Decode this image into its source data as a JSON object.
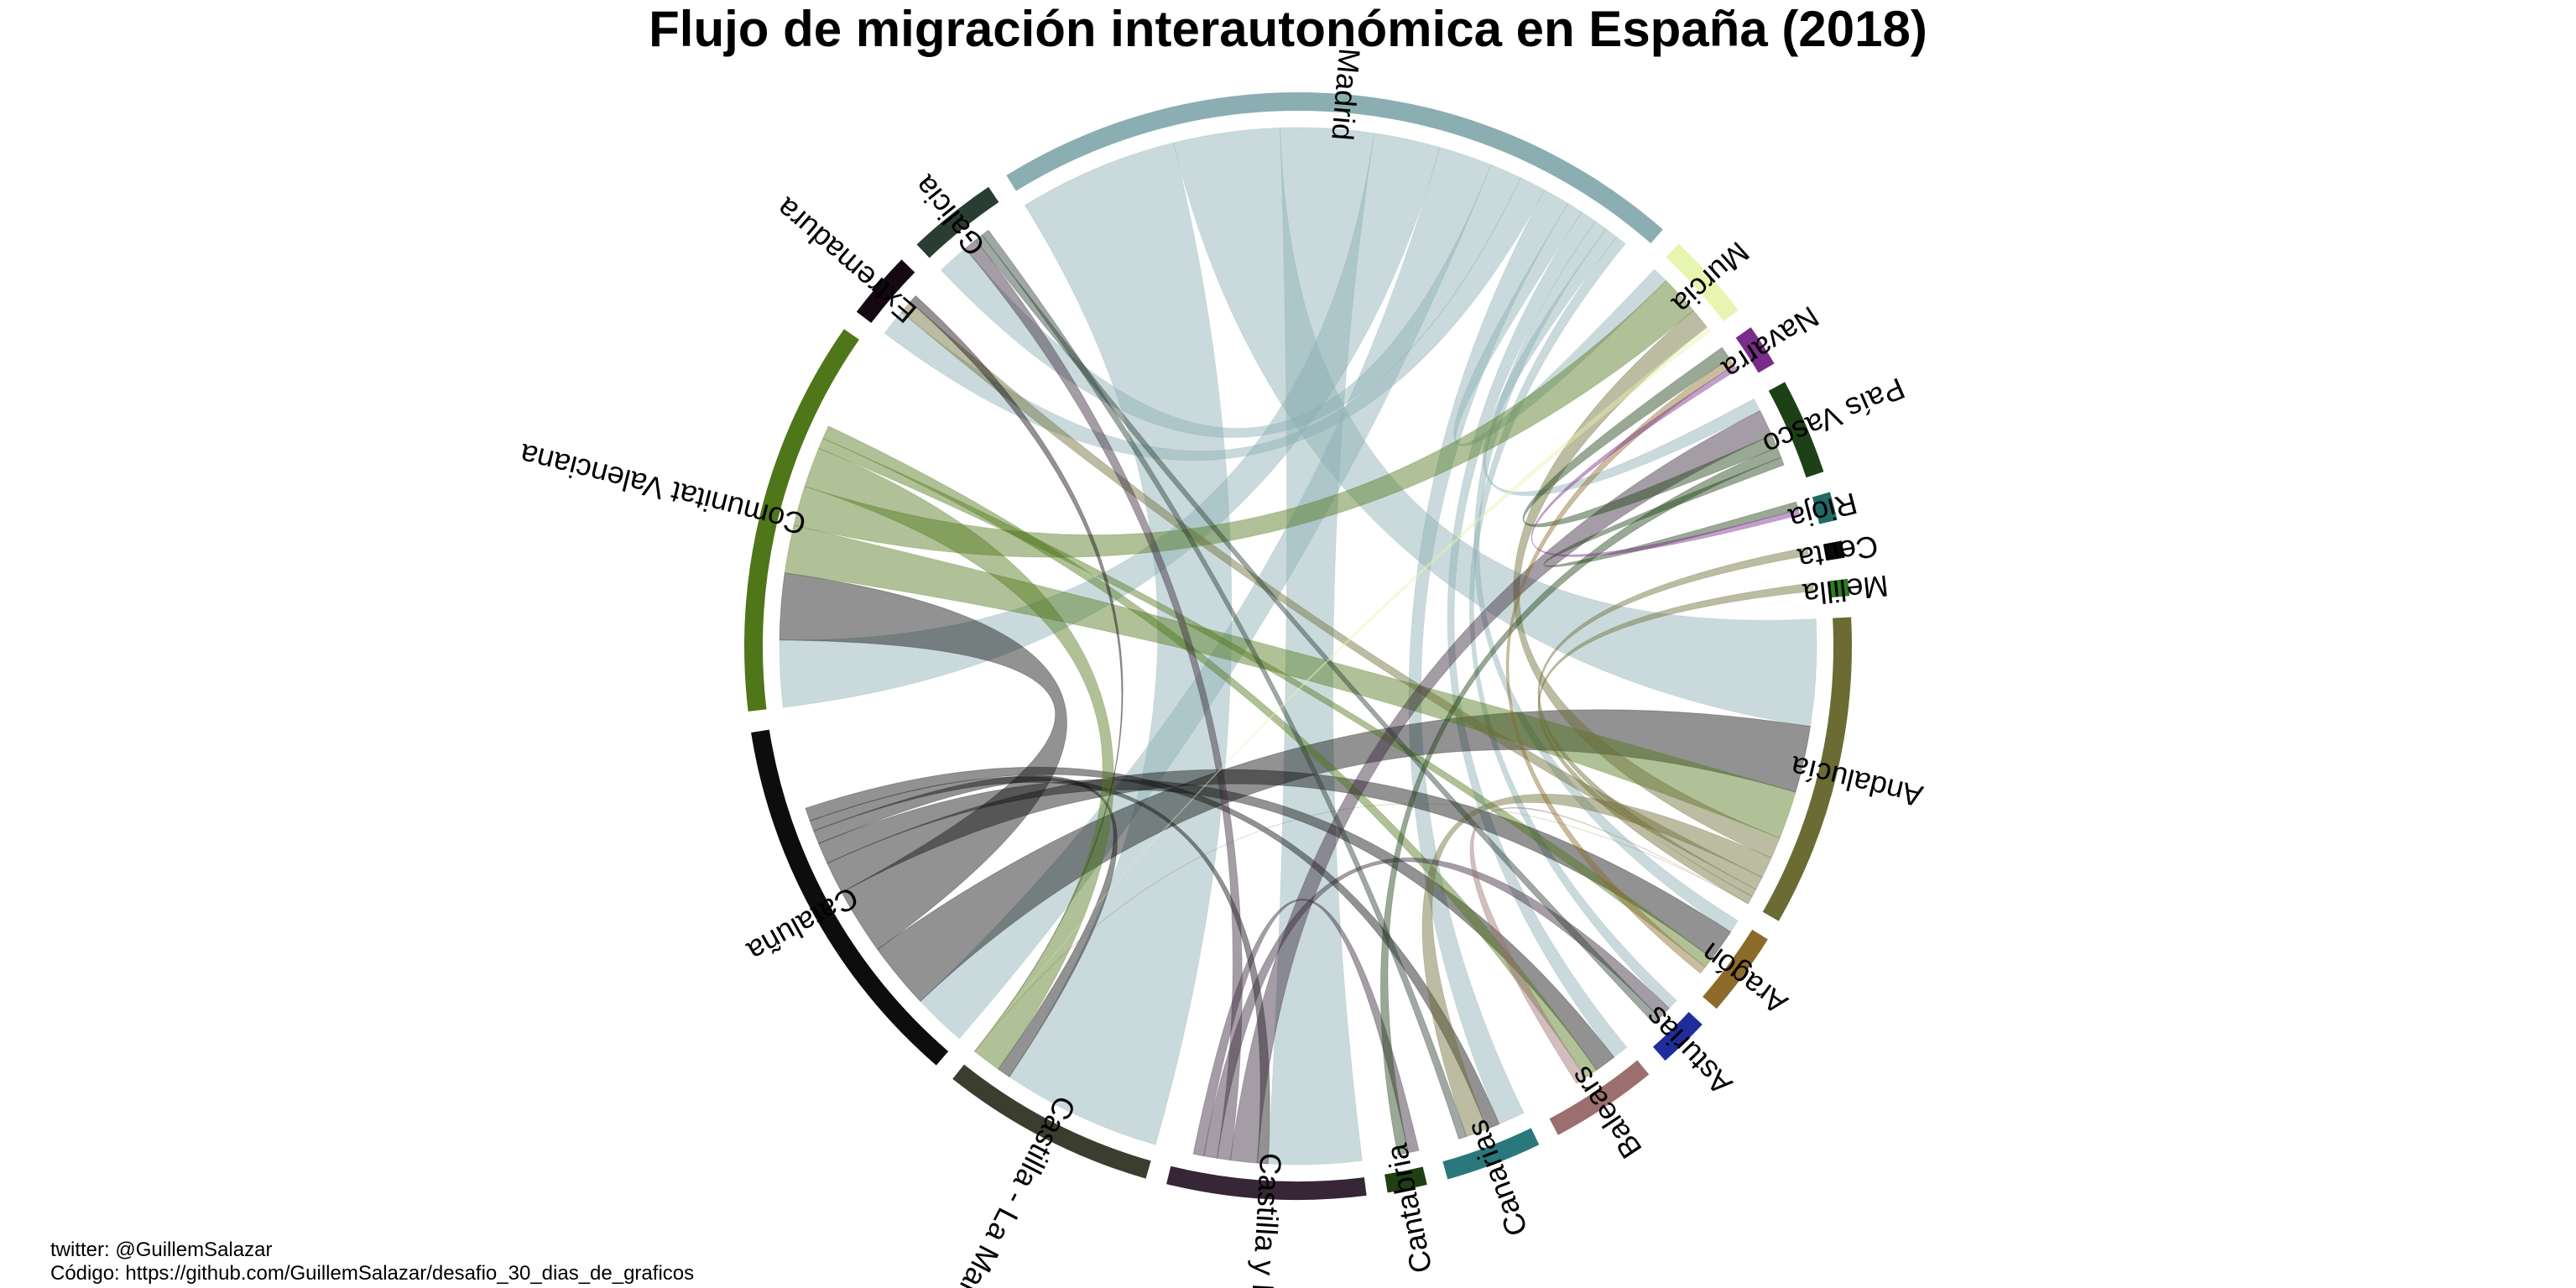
{
  "chart_data": {
    "type": "chord",
    "title": "Flujo de migración interautonómica en España (2018)",
    "regions": [
      {
        "name": "Andalucía",
        "color": "#6B6B34",
        "weight": 11.0
      },
      {
        "name": "Aragón",
        "color": "#8B6A2A",
        "weight": 3.0
      },
      {
        "name": "Asturias",
        "color": "#1F2D9C",
        "weight": 1.8
      },
      {
        "name": "Balears",
        "color": "#9C6F6F",
        "weight": 3.8
      },
      {
        "name": "Canarias",
        "color": "#2A787C",
        "weight": 3.4
      },
      {
        "name": "Cantabria",
        "color": "#1E4012",
        "weight": 1.4
      },
      {
        "name": "Castilla y León",
        "color": "#372638",
        "weight": 7.0
      },
      {
        "name": "Castilla - La Mancha",
        "color": "#3B3D2E",
        "weight": 7.6
      },
      {
        "name": "Cataluña",
        "color": "#0D0D0D",
        "weight": 13.5
      },
      {
        "name": "Comunitat Valenciana",
        "color": "#4F7619",
        "weight": 14.0
      },
      {
        "name": "Extremadura",
        "color": "#160810",
        "weight": 2.4
      },
      {
        "name": "Galicia",
        "color": "#2A3D33",
        "weight": 3.2
      },
      {
        "name": "Madrid",
        "color": "#8AAEB2",
        "weight": 24.5
      },
      {
        "name": "Murcia",
        "color": "#E8F5B0",
        "weight": 3.1
      },
      {
        "name": "Navarra",
        "color": "#7A2C8A",
        "weight": 1.5
      },
      {
        "name": "País Vasco",
        "color": "#1E4016",
        "weight": 3.4
      },
      {
        "name": "Rioja",
        "color": "#216A66",
        "weight": 1.0
      },
      {
        "name": "Ceuta",
        "color": "#0A0A0A",
        "weight": 0.6
      },
      {
        "name": "Melilla",
        "color": "#2E7D22",
        "weight": 0.6
      }
    ],
    "flows": [
      {
        "from": "Madrid",
        "to": "Castilla - La Mancha",
        "value": 6.0
      },
      {
        "from": "Madrid",
        "to": "Andalucía",
        "value": 4.0
      },
      {
        "from": "Madrid",
        "to": "Castilla y León",
        "value": 3.5
      },
      {
        "from": "Madrid",
        "to": "Comunitat Valenciana",
        "value": 2.5
      },
      {
        "from": "Madrid",
        "to": "Cataluña",
        "value": 2.0
      },
      {
        "from": "Madrid",
        "to": "Galicia",
        "value": 1.2
      },
      {
        "from": "Madrid",
        "to": "Extremadura",
        "value": 1.0
      },
      {
        "from": "Madrid",
        "to": "Canarias",
        "value": 1.0
      },
      {
        "from": "Madrid",
        "to": "Murcia",
        "value": 0.6
      },
      {
        "from": "Madrid",
        "to": "Balears",
        "value": 0.6
      },
      {
        "from": "Madrid",
        "to": "Aragón",
        "value": 0.5
      },
      {
        "from": "Madrid",
        "to": "País Vasco",
        "value": 0.5
      },
      {
        "from": "Madrid",
        "to": "Asturias",
        "value": 0.4
      },
      {
        "from": "Cataluña",
        "to": "Andalucía",
        "value": 2.5
      },
      {
        "from": "Cataluña",
        "to": "Comunitat Valenciana",
        "value": 2.5
      },
      {
        "from": "Cataluña",
        "to": "Aragón",
        "value": 1.2
      },
      {
        "from": "Cataluña",
        "to": "Balears",
        "value": 0.8
      },
      {
        "from": "Cataluña",
        "to": "Castilla - La Mancha",
        "value": 0.5
      },
      {
        "from": "Cataluña",
        "to": "Castilla y León",
        "value": 0.4
      },
      {
        "from": "Cataluña",
        "to": "Canarias",
        "value": 0.5
      },
      {
        "from": "Comunitat Valenciana",
        "to": "Andalucía",
        "value": 1.8
      },
      {
        "from": "Comunitat Valenciana",
        "to": "Murcia",
        "value": 1.5
      },
      {
        "from": "Comunitat Valenciana",
        "to": "Castilla - La Mancha",
        "value": 1.5
      },
      {
        "from": "Comunitat Valenciana",
        "to": "Aragón",
        "value": 0.4
      },
      {
        "from": "Comunitat Valenciana",
        "to": "Balears",
        "value": 0.5
      },
      {
        "from": "Andalucía",
        "to": "Murcia",
        "value": 0.8
      },
      {
        "from": "Andalucía",
        "to": "Canarias",
        "value": 0.8
      },
      {
        "from": "Andalucía",
        "to": "Extremadura",
        "value": 0.5
      },
      {
        "from": "Andalucía",
        "to": "Ceuta",
        "value": 0.3
      },
      {
        "from": "Andalucía",
        "to": "Melilla",
        "value": 0.3
      },
      {
        "from": "Andalucía",
        "to": "Castilla - La Mancha",
        "value": 0.7
      },
      {
        "from": "Castilla y León",
        "to": "País Vasco",
        "value": 1.0
      },
      {
        "from": "Castilla y León",
        "to": "Galicia",
        "value": 0.5
      },
      {
        "from": "Castilla y León",
        "to": "Asturias",
        "value": 0.5
      },
      {
        "from": "Castilla y León",
        "to": "Cantabria",
        "value": 0.4
      },
      {
        "from": "País Vasco",
        "to": "Navarra",
        "value": 0.5
      },
      {
        "from": "País Vasco",
        "to": "Cantabria",
        "value": 0.4
      },
      {
        "from": "País Vasco",
        "to": "Rioja",
        "value": 0.3
      },
      {
        "from": "Galicia",
        "to": "Asturias",
        "value": 0.3
      },
      {
        "from": "Galicia",
        "to": "Canarias",
        "value": 0.3
      },
      {
        "from": "Aragón",
        "to": "Navarra",
        "value": 0.3
      },
      {
        "from": "Navarra",
        "to": "Rioja",
        "value": 0.2
      },
      {
        "from": "Extremadura",
        "to": "Castilla - La Mancha",
        "value": 0.3
      },
      {
        "from": "Murcia",
        "to": "Castilla - La Mancha",
        "value": 0.4
      },
      {
        "from": "Balears",
        "to": "Andalucía",
        "value": 0.4
      }
    ],
    "start_angle_deg": 87,
    "direction": "clockwise",
    "gap_deg": 2.2
  },
  "captions": {
    "twitter": "twitter: @GuillemSalazar",
    "code": "Código: https://github.com/GuillemSalazar/desafio_30_dias_de_graficos"
  }
}
